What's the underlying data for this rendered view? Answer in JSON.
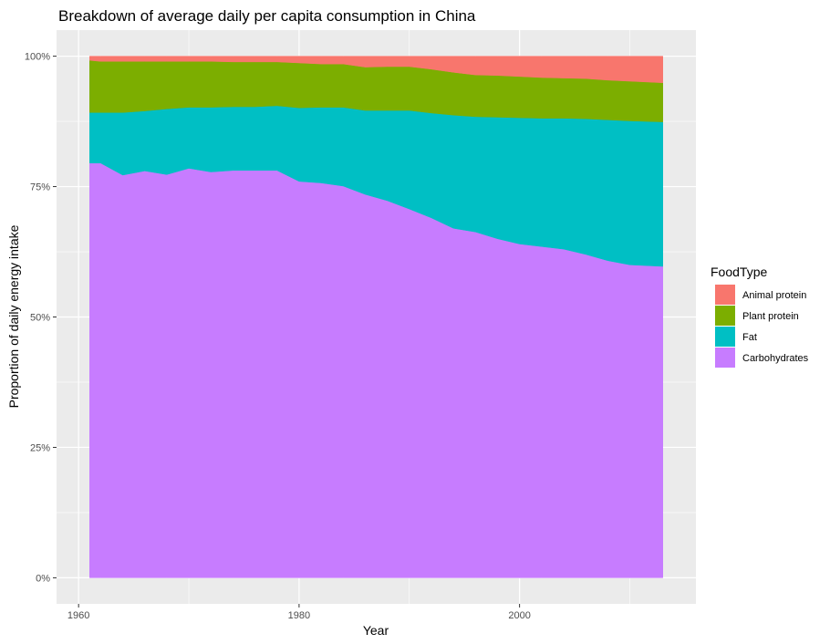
{
  "chart_data": {
    "type": "area",
    "stacked": "proportional",
    "title": "Breakdown of average daily per capita consumption in China",
    "xlabel": "Year",
    "ylabel": "Proportion of daily energy intake",
    "xlim": [
      1958,
      2016
    ],
    "ylim": [
      -0.05,
      1.05
    ],
    "x_ticks": [
      1960,
      1980,
      2000
    ],
    "x_tick_labels": [
      "1960",
      "1980",
      "2000"
    ],
    "y_ticks": [
      0,
      0.25,
      0.5,
      0.75,
      1.0
    ],
    "y_tick_labels": [
      "0%",
      "25%",
      "50%",
      "75%",
      "100%"
    ],
    "grid": true,
    "panel_background": "#ebebeb",
    "legend": {
      "title": "FoodType",
      "placement": "right",
      "entries": [
        {
          "label": "Animal protein",
          "color": "#F8766D"
        },
        {
          "label": "Plant protein",
          "color": "#7CAE00"
        },
        {
          "label": "Fat",
          "color": "#00BFC4"
        },
        {
          "label": "Carbohydrates",
          "color": "#C77CFF"
        }
      ]
    },
    "x": [
      1961,
      1962,
      1964,
      1966,
      1968,
      1970,
      1972,
      1974,
      1976,
      1978,
      1980,
      1982,
      1984,
      1986,
      1988,
      1990,
      1992,
      1994,
      1996,
      1998,
      2000,
      2002,
      2004,
      2006,
      2008,
      2010,
      2013
    ],
    "series": [
      {
        "name": "Carbohydrates",
        "color": "#C77CFF",
        "values": [
          0.795,
          0.795,
          0.772,
          0.78,
          0.773,
          0.785,
          0.778,
          0.781,
          0.781,
          0.781,
          0.76,
          0.757,
          0.751,
          0.735,
          0.723,
          0.707,
          0.69,
          0.67,
          0.663,
          0.65,
          0.64,
          0.635,
          0.63,
          0.62,
          0.608,
          0.6,
          0.597
        ]
      },
      {
        "name": "Fat",
        "color": "#00BFC4",
        "values": [
          0.097,
          0.097,
          0.12,
          0.115,
          0.126,
          0.117,
          0.124,
          0.122,
          0.122,
          0.124,
          0.141,
          0.145,
          0.151,
          0.161,
          0.173,
          0.189,
          0.201,
          0.217,
          0.221,
          0.233,
          0.242,
          0.246,
          0.251,
          0.26,
          0.27,
          0.276,
          0.277
        ]
      },
      {
        "name": "Plant protein",
        "color": "#7CAE00",
        "values": [
          0.1,
          0.098,
          0.098,
          0.095,
          0.091,
          0.088,
          0.088,
          0.086,
          0.086,
          0.084,
          0.086,
          0.083,
          0.083,
          0.083,
          0.084,
          0.084,
          0.084,
          0.082,
          0.08,
          0.08,
          0.079,
          0.078,
          0.077,
          0.077,
          0.076,
          0.076,
          0.075
        ]
      },
      {
        "name": "Animal protein",
        "color": "#F8766D",
        "values": [
          0.008,
          0.01,
          0.01,
          0.01,
          0.01,
          0.01,
          0.01,
          0.011,
          0.011,
          0.011,
          0.013,
          0.015,
          0.015,
          0.021,
          0.02,
          0.02,
          0.025,
          0.031,
          0.036,
          0.037,
          0.039,
          0.041,
          0.042,
          0.043,
          0.046,
          0.048,
          0.051
        ]
      }
    ]
  }
}
